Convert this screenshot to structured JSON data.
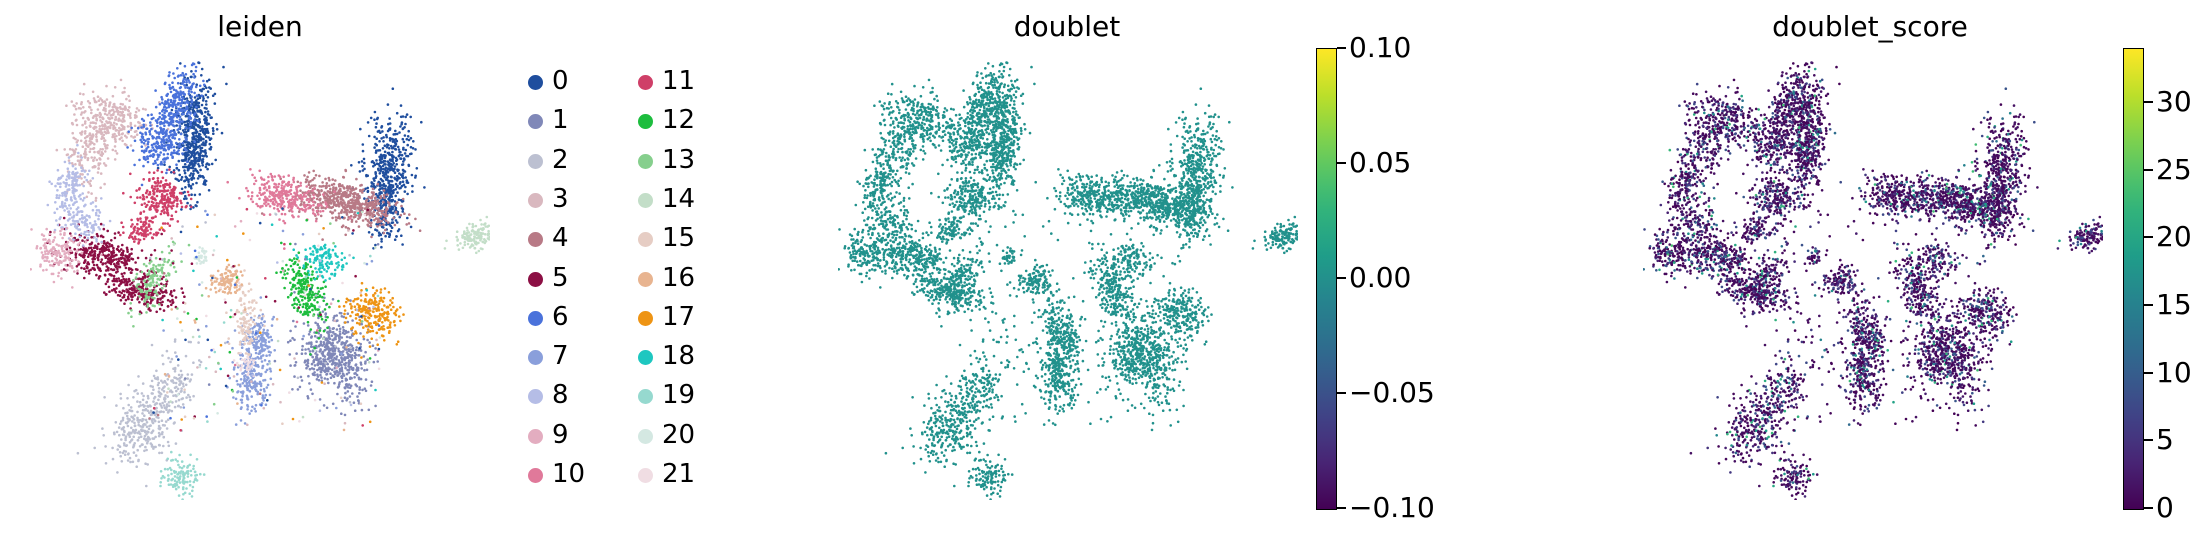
{
  "chart_data": [
    {
      "type": "scatter",
      "title": "leiden",
      "legend": {
        "placement": "right",
        "entries": [
          {
            "label": "0",
            "color": "#1f4e9e"
          },
          {
            "label": "1",
            "color": "#8088b8"
          },
          {
            "label": "2",
            "color": "#bcc0d1"
          },
          {
            "label": "3",
            "color": "#d9b8bf"
          },
          {
            "label": "4",
            "color": "#b87a86"
          },
          {
            "label": "5",
            "color": "#8c0f44"
          },
          {
            "label": "6",
            "color": "#4a72db"
          },
          {
            "label": "7",
            "color": "#8a9fdb"
          },
          {
            "label": "8",
            "color": "#b5bde6"
          },
          {
            "label": "9",
            "color": "#e3adc0"
          },
          {
            "label": "10",
            "color": "#e0799a"
          },
          {
            "label": "11",
            "color": "#cf3f68"
          },
          {
            "label": "12",
            "color": "#1dbd3e"
          },
          {
            "label": "13",
            "color": "#86cf8d"
          },
          {
            "label": "14",
            "color": "#c3dec8"
          },
          {
            "label": "15",
            "color": "#e6cdc4"
          },
          {
            "label": "16",
            "color": "#e8b490"
          },
          {
            "label": "17",
            "color": "#ee9414"
          },
          {
            "label": "18",
            "color": "#1ec7c0"
          },
          {
            "label": "19",
            "color": "#96d9cf"
          },
          {
            "label": "20",
            "color": "#d4e8e2"
          },
          {
            "label": "21",
            "color": "#f0dde3"
          }
        ]
      },
      "grid": false,
      "axes_visible": false
    },
    {
      "type": "scatter",
      "title": "doublet",
      "colorbar": {
        "colormap": "viridis",
        "range": [
          -0.1,
          0.1
        ],
        "ticks": [
          "0.10",
          "0.05",
          "0.00",
          "−0.05",
          "−0.10"
        ],
        "tick_values": [
          0.1,
          0.05,
          0.0,
          -0.05,
          -0.1
        ]
      },
      "point_color": "#21918c",
      "grid": false,
      "axes_visible": false
    },
    {
      "type": "scatter",
      "title": "doublet_score",
      "colorbar": {
        "colormap": "viridis",
        "range": [
          0,
          34
        ],
        "ticks": [
          "30",
          "25",
          "20",
          "15",
          "10",
          "5",
          "0"
        ],
        "tick_values": [
          30,
          25,
          20,
          15,
          10,
          5,
          0
        ]
      },
      "grid": false,
      "axes_visible": false
    }
  ]
}
